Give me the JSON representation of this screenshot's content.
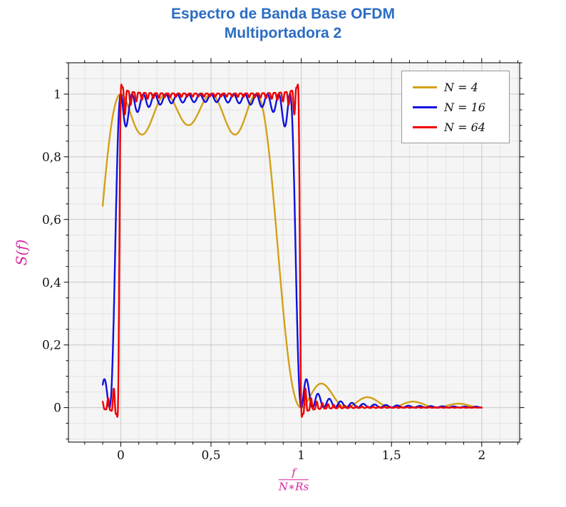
{
  "title": {
    "line1": "Espectro de Banda Base OFDM",
    "line2": "Multiportadora 2",
    "color": "#2b6cc4"
  },
  "chart_data": {
    "type": "line",
    "title": "Espectro de Banda Base OFDM — Multiportadora 2",
    "ylabel": "S(f)",
    "xlabel": {
      "text": "f/(N∗Rs)",
      "numerator": "f",
      "denominator": "N∗Rs"
    },
    "axis_label_color": "#d9229e",
    "xlim": [
      -0.29,
      2.21
    ],
    "ylim": [
      -0.11,
      1.1
    ],
    "grid": "both",
    "legend_position": "top-right",
    "x_major_ticks": {
      "values": [
        0,
        0.5,
        1,
        1.5,
        2
      ],
      "labels": [
        "0",
        "0,5",
        "1",
        "1,5",
        "2"
      ]
    },
    "y_major_ticks": {
      "values": [
        0,
        0.2,
        0.4,
        0.6,
        0.8,
        1
      ],
      "labels": [
        "0",
        "0,2",
        "0,4",
        "0,6",
        "0,8",
        "1"
      ]
    },
    "x_minor_step": 0.1,
    "y_minor_step": 0.05,
    "sample_domain": [
      -0.1,
      2.0
    ],
    "sample_step": 0.001,
    "series": [
      {
        "name": "N = 4",
        "N": 4,
        "color": "#d4a017",
        "model": "sum_sinc2",
        "carriers": "centered at k/N, k=0..N-1",
        "passband": [
          0,
          0.82
        ],
        "peak_value": 1.0,
        "ripple_min": 0.87,
        "value_at_left_edge_x_-0.1": 0.645,
        "first_right_sidelobe": {
          "x": 1.12,
          "y": 0.07
        },
        "right_nulls": [
          1.0,
          1.25,
          1.5,
          1.75,
          2.0
        ]
      },
      {
        "name": "N = 16",
        "N": 16,
        "color": "#1010e0",
        "model": "sum_sinc2",
        "carriers": "centered at k/N, k=0..N-1",
        "passband": [
          0,
          0.95
        ],
        "peak_value": 1.0,
        "ripple_min": 0.95,
        "value_at_left_edge_x_-0.1": 0.07,
        "first_right_sidelobe": {
          "x": 1.03,
          "y": 0.05
        }
      },
      {
        "name": "N = 64",
        "N": 64,
        "color": "#ee0000",
        "model": "sum_sinc_blend",
        "carriers": "centered at k/N, k=0..N-1",
        "passband": [
          0,
          0.985
        ],
        "peak_value": 1.0,
        "ripple_min": 0.99,
        "edge_overshoot": 1.02,
        "edge_undershoot": -0.04,
        "value_at_left_edge_x_-0.1": 0.01
      }
    ]
  }
}
